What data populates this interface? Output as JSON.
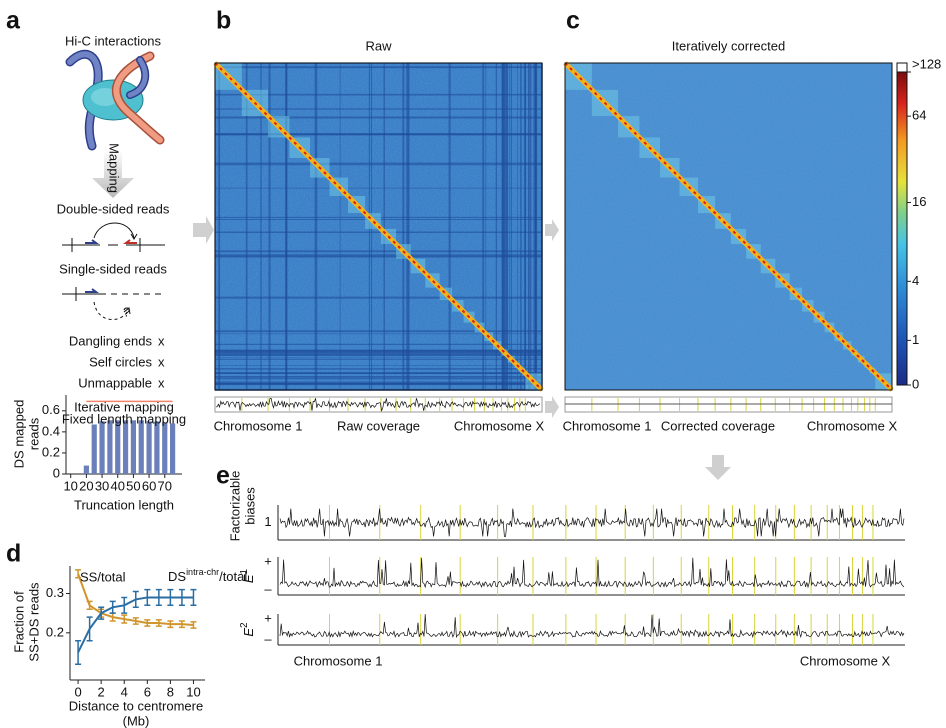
{
  "panel_labels": [
    "a",
    "b",
    "c",
    "d",
    "e"
  ],
  "schematic": {
    "title": "Hi-C interactions",
    "arrow_label": "Mapping",
    "double_sided": "Double-sided reads",
    "single_sided": "Single-sided reads",
    "unknown": "?",
    "filtered": [
      {
        "label": "Dangling ends",
        "mark": "x"
      },
      {
        "label": "Self circles",
        "mark": "x"
      },
      {
        "label": "Unmappable",
        "mark": "x"
      }
    ]
  },
  "chart_data": [
    {
      "type": "bar",
      "ylabel": [
        "DS mapped",
        "reads"
      ],
      "xlabel": "Truncation length",
      "x": [
        20,
        25,
        30,
        35,
        40,
        45,
        50,
        55,
        60,
        65,
        70,
        75
      ],
      "series": [
        {
          "name": "Iterative mapping",
          "type": "line",
          "color": "#f4826a",
          "values": [
            0.69,
            0.69,
            0.69,
            0.69,
            0.69,
            0.69,
            0.69,
            0.69,
            0.69,
            0.69,
            0.69,
            0.69
          ]
        },
        {
          "name": "Fixed length mapping",
          "type": "bar",
          "color": "#6b7fba",
          "values": [
            0.08,
            0.47,
            0.5,
            0.51,
            0.51,
            0.51,
            0.51,
            0.51,
            0.5,
            0.5,
            0.49,
            0.48
          ]
        }
      ],
      "xlim": [
        7,
        81
      ],
      "xticks": [
        10,
        20,
        30,
        40,
        50,
        60,
        70
      ],
      "ylim": [
        0,
        0.75
      ],
      "yticks": [
        0,
        0.2,
        0.4,
        0.6
      ]
    },
    {
      "type": "line",
      "ylabel": [
        "Fraction of",
        "SS+DS reads"
      ],
      "xlabel": [
        "Distance to centromere",
        "(Mb)"
      ],
      "x": [
        0,
        1,
        2,
        3,
        4,
        5,
        6,
        7,
        8,
        9,
        10
      ],
      "series": [
        {
          "name": "SS/total",
          "color": "#d0952c",
          "values": [
            0.35,
            0.27,
            0.25,
            0.24,
            0.235,
            0.23,
            0.225,
            0.225,
            0.222,
            0.222,
            0.22
          ],
          "errors": [
            0.01,
            0.01,
            0.01,
            0.01,
            0.01,
            0.008,
            0.008,
            0.008,
            0.008,
            0.008,
            0.008
          ]
        },
        {
          "name": "DS",
          "name_superscript": "intra-chr",
          "name_suffix": "/total",
          "color": "#2b6ea3",
          "values": [
            0.15,
            0.21,
            0.25,
            0.265,
            0.27,
            0.285,
            0.29,
            0.29,
            0.29,
            0.29,
            0.29
          ],
          "errors": [
            0.03,
            0.03,
            0.015,
            0.015,
            0.02,
            0.02,
            0.02,
            0.02,
            0.02,
            0.02,
            0.02
          ]
        }
      ],
      "xlim": [
        -0.7,
        11
      ],
      "xticks": [
        0,
        2,
        4,
        6,
        8,
        10
      ],
      "ylim": [
        0.08,
        0.37
      ],
      "yticks": [
        0.2,
        0.3
      ]
    }
  ],
  "heatmaps": [
    {
      "title": "Raw",
      "footer": [
        "Chromosome 1",
        "Raw coverage",
        "Chromosome X"
      ]
    },
    {
      "title": "Iteratively corrected",
      "footer": [
        "Chromosome 1",
        "Corrected coverage",
        "Chromosome X"
      ]
    }
  ],
  "colorbar": {
    "lim": [
      0,
      128
    ],
    "scale": "log",
    "ticks": [
      {
        "value": 128,
        "label": ">128"
      },
      64,
      16,
      4,
      1,
      0
    ]
  },
  "biases": {
    "ylabel": [
      "Factorizable",
      "biases"
    ],
    "tracks": [
      {
        "label": "1"
      },
      {
        "label": "E",
        "superscript": "1",
        "plus": "+",
        "minus": "–"
      },
      {
        "label": "E",
        "superscript": "2",
        "plus": "+",
        "minus": "–"
      }
    ],
    "footer": [
      "Chromosome 1",
      "Chromosome X"
    ]
  }
}
